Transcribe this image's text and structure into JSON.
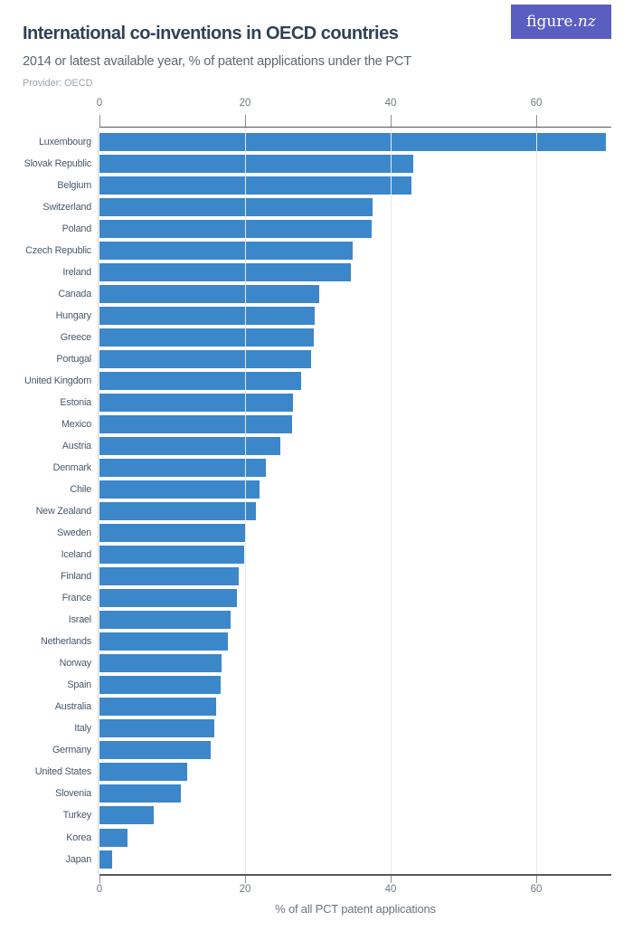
{
  "logo": {
    "text_regular": "figure.",
    "text_italic": "nz"
  },
  "header": {
    "title": "International co-inventions in OECD countries",
    "subtitle": "2014 or latest available year, % of patent applications under the PCT",
    "provider": "Provider: OECD"
  },
  "chart_data": {
    "type": "bar",
    "orientation": "horizontal",
    "title": "International co-inventions in OECD countries",
    "subtitle": "2014 or latest available year, % of patent applications under the PCT",
    "provider": "Provider: OECD",
    "xlabel": "% of all PCT patent applications",
    "xlim": [
      0,
      70.2
    ],
    "xticks": [
      0,
      20,
      40,
      60
    ],
    "grid": "vertical gridlines at 20, 40, 60; top and bottom dark axis lines",
    "legend": "none",
    "categories": [
      "Luxembourg",
      "Slovak Republic",
      "Belgium",
      "Switzerland",
      "Poland",
      "Czech Republic",
      "Ireland",
      "Canada",
      "Hungary",
      "Greece",
      "Portugal",
      "United Kingdom",
      "Estonia",
      "Mexico",
      "Austria",
      "Denmark",
      "Chile",
      "New Zealand",
      "Sweden",
      "Iceland",
      "Finland",
      "France",
      "Israel",
      "Netherlands",
      "Norway",
      "Spain",
      "Australia",
      "Italy",
      "Germany",
      "United States",
      "Slovenia",
      "Turkey",
      "Korea",
      "Japan"
    ],
    "values": [
      69.6,
      43.1,
      42.9,
      37.5,
      37.4,
      34.8,
      34.5,
      30.2,
      29.6,
      29.4,
      29.1,
      27.7,
      26.6,
      26.5,
      24.9,
      22.9,
      22.0,
      21.5,
      20.1,
      19.9,
      19.1,
      18.9,
      18.0,
      17.6,
      16.8,
      16.7,
      16.0,
      15.8,
      15.3,
      12.0,
      11.2,
      7.5,
      3.8,
      1.7
    ]
  },
  "colors": {
    "bar": "#3c87ca",
    "logo_background": "#5a5ec0",
    "title_text": "#2e4257",
    "subtitle_text": "#5d6771",
    "provider_text": "#9ba3ab",
    "country_label_text": "#47586b",
    "axis_line": "#54585c",
    "tick_label_text": "#6e7983",
    "gridline": "#e7e9ec"
  }
}
